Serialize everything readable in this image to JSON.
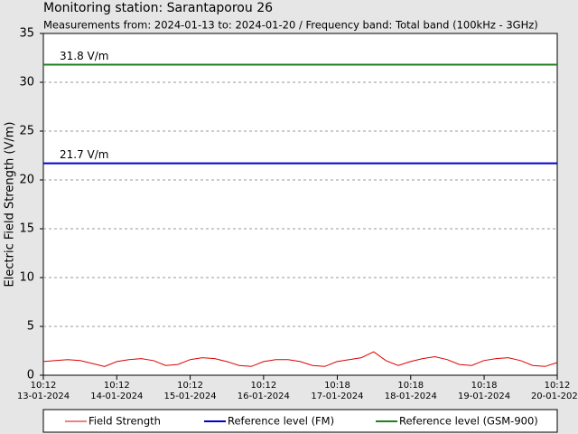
{
  "chart_data": {
    "type": "line",
    "title": "Monitoring station: Sarantaporou 26",
    "subtitle": "Measurements from: 2024-01-13 to: 2024-01-20 / Frequency band: Total band (100kHz - 3GHz)",
    "ylabel": "Electric Field Strength (V/m)",
    "ylim": [
      0,
      35
    ],
    "yticks": [
      0,
      5,
      10,
      15,
      20,
      25,
      30,
      35
    ],
    "grid": true,
    "xlim": [
      "2024-01-13 10:12",
      "2024-01-20 10:12"
    ],
    "xticks": [
      {
        "value": "2024-01-13 10:12",
        "label": [
          "10:12",
          "13-01-2024"
        ]
      },
      {
        "value": "2024-01-14 10:12",
        "label": [
          "10:12",
          "14-01-2024"
        ]
      },
      {
        "value": "2024-01-15 10:12",
        "label": [
          "10:12",
          "15-01-2024"
        ]
      },
      {
        "value": "2024-01-16 10:12",
        "label": [
          "10:12",
          "16-01-2024"
        ]
      },
      {
        "value": "2024-01-17 10:18",
        "label": [
          "10:18",
          "17-01-2024"
        ]
      },
      {
        "value": "2024-01-18 10:18",
        "label": [
          "10:18",
          "18-01-2024"
        ]
      },
      {
        "value": "2024-01-19 10:18",
        "label": [
          "10:18",
          "19-01-2024"
        ]
      },
      {
        "value": "2024-01-20 10:12",
        "label": [
          "10:12",
          "20-01-2024"
        ]
      }
    ],
    "series": [
      {
        "name": "Field Strength",
        "color": "#dd0000",
        "x": [
          "2024-01-13 10:12",
          "2024-01-13 14:12",
          "2024-01-13 18:12",
          "2024-01-13 22:12",
          "2024-01-14 02:12",
          "2024-01-14 06:12",
          "2024-01-14 10:12",
          "2024-01-14 14:12",
          "2024-01-14 18:12",
          "2024-01-14 22:12",
          "2024-01-15 02:12",
          "2024-01-15 06:12",
          "2024-01-15 10:12",
          "2024-01-15 14:12",
          "2024-01-15 18:12",
          "2024-01-15 22:12",
          "2024-01-16 02:12",
          "2024-01-16 06:12",
          "2024-01-16 10:12",
          "2024-01-16 14:12",
          "2024-01-16 18:12",
          "2024-01-16 22:12",
          "2024-01-17 02:12",
          "2024-01-17 06:12",
          "2024-01-17 10:12",
          "2024-01-17 14:12",
          "2024-01-17 18:12",
          "2024-01-17 22:12",
          "2024-01-18 02:12",
          "2024-01-18 06:12",
          "2024-01-18 10:12",
          "2024-01-18 14:12",
          "2024-01-18 18:12",
          "2024-01-18 22:12",
          "2024-01-19 02:12",
          "2024-01-19 06:12",
          "2024-01-19 10:12",
          "2024-01-19 14:12",
          "2024-01-19 18:12",
          "2024-01-19 22:12",
          "2024-01-20 02:12",
          "2024-01-20 06:12",
          "2024-01-20 10:12"
        ],
        "values": [
          1.4,
          1.5,
          1.6,
          1.5,
          1.2,
          0.9,
          1.4,
          1.6,
          1.7,
          1.5,
          1.0,
          1.1,
          1.6,
          1.8,
          1.7,
          1.4,
          1.0,
          0.9,
          1.4,
          1.6,
          1.6,
          1.4,
          1.0,
          0.9,
          1.4,
          1.6,
          1.8,
          2.4,
          1.5,
          1.0,
          1.4,
          1.7,
          1.9,
          1.6,
          1.1,
          1.0,
          1.5,
          1.7,
          1.8,
          1.5,
          1.0,
          0.9,
          1.3
        ]
      }
    ],
    "reference_lines": [
      {
        "name": "Reference level (FM)",
        "value": 21.7,
        "label": "21.7 V/m",
        "color": "#0000cc"
      },
      {
        "name": "Reference level (GSM-900)",
        "value": 31.8,
        "label": "31.8 V/m",
        "color": "#208020"
      }
    ]
  }
}
